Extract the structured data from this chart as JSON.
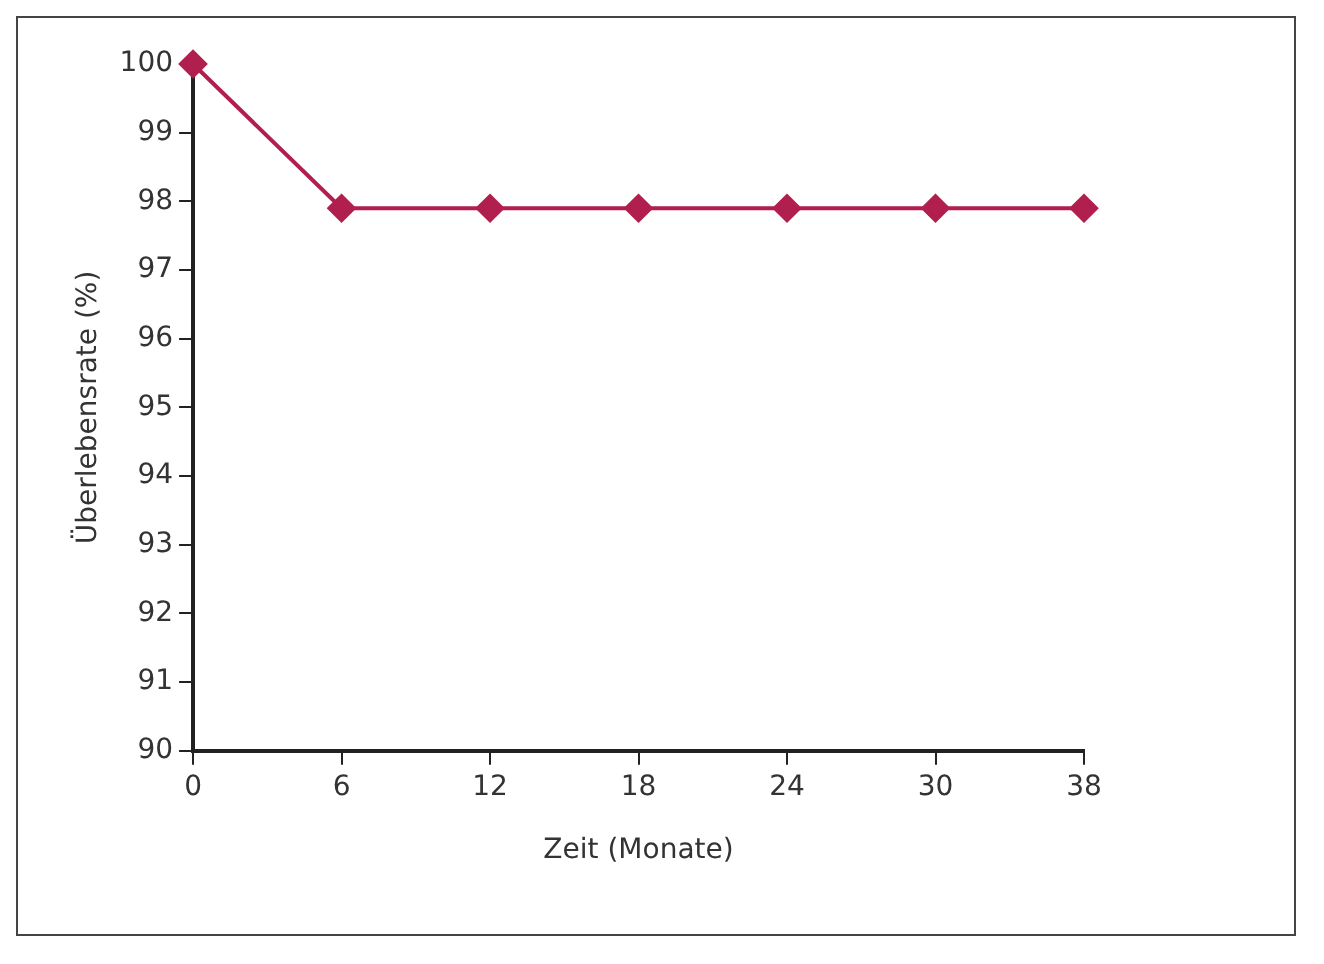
{
  "chart_data": {
    "type": "line",
    "xlabel": "Zeit (Monate)",
    "ylabel": "Überlebensrate (%)",
    "categories": [
      "0",
      "6",
      "12",
      "18",
      "24",
      "30",
      "38"
    ],
    "series": [
      {
        "color": "#b01f4e",
        "values": [
          100,
          97.9,
          97.9,
          97.9,
          97.9,
          97.9,
          97.9
        ]
      }
    ],
    "ylim": [
      90,
      100
    ],
    "yticks": [
      90,
      91,
      92,
      93,
      94,
      95,
      96,
      97,
      98,
      99,
      100
    ],
    "grid": false,
    "legend": false,
    "marker": "diamond",
    "line_style": "solid"
  }
}
